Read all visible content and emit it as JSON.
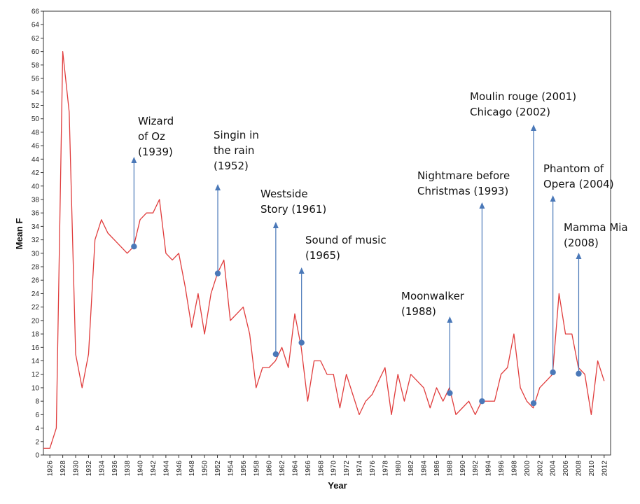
{
  "chart_data": {
    "type": "line",
    "title": "",
    "xlabel": "Year",
    "ylabel": "Mean F",
    "xlim": [
      1925,
      2013
    ],
    "ylim": [
      0,
      66
    ],
    "y_ticks": [
      0,
      2,
      4,
      6,
      8,
      10,
      12,
      14,
      16,
      18,
      20,
      22,
      24,
      26,
      28,
      30,
      32,
      34,
      36,
      38,
      40,
      42,
      44,
      46,
      48,
      50,
      52,
      54,
      56,
      58,
      60,
      62,
      64,
      66
    ],
    "x_ticks": [
      1926,
      1928,
      1930,
      1932,
      1934,
      1936,
      1938,
      1940,
      1942,
      1944,
      1946,
      1948,
      1950,
      1952,
      1954,
      1956,
      1958,
      1960,
      1962,
      1964,
      1966,
      1968,
      1970,
      1972,
      1974,
      1976,
      1978,
      1980,
      1982,
      1984,
      1986,
      1988,
      1990,
      1992,
      1994,
      1996,
      1998,
      2000,
      2002,
      2004,
      2006,
      2008,
      2010,
      2012
    ],
    "grid": false,
    "line_color": "#e03c3c",
    "marker_color": "#4a78b8",
    "series": [
      {
        "x": [
          1925,
          1926,
          1927,
          1928,
          1929,
          1930,
          1931,
          1932,
          1933,
          1934,
          1935,
          1936,
          1937,
          1938,
          1939,
          1940,
          1941,
          1942,
          1943,
          1944,
          1945,
          1946,
          1947,
          1948,
          1949,
          1950,
          1951,
          1952,
          1953,
          1954,
          1955,
          1956,
          1957,
          1958,
          1959,
          1960,
          1961,
          1962,
          1963,
          1964,
          1965,
          1966,
          1967,
          1968,
          1969,
          1970,
          1971,
          1972,
          1973,
          1974,
          1975,
          1976,
          1977,
          1978,
          1979,
          1980,
          1981,
          1982,
          1983,
          1984,
          1985,
          1986,
          1987,
          1988,
          1989,
          1990,
          1991,
          1992,
          1993,
          1994,
          1995,
          1996,
          1997,
          1998,
          1999,
          2000,
          2001,
          2002,
          2003,
          2004,
          2005,
          2006,
          2007,
          2008,
          2009,
          2010,
          2011,
          2012
        ],
        "values": [
          1,
          1,
          4,
          60,
          51,
          15,
          10,
          15,
          32,
          35,
          33,
          32,
          31,
          30,
          31,
          35,
          36,
          36,
          38,
          30,
          29,
          30,
          25,
          19,
          24,
          18,
          24,
          27,
          29,
          20,
          21,
          22,
          18,
          10,
          13,
          13,
          14,
          16,
          13,
          21,
          16,
          8,
          14,
          14,
          12,
          12,
          7,
          12,
          9,
          6,
          8,
          9,
          11,
          13,
          6,
          12,
          8,
          12,
          11,
          10,
          7,
          10,
          8,
          10,
          6,
          7,
          8,
          6,
          8,
          8,
          8,
          12,
          13,
          18,
          10,
          8,
          7,
          10,
          11,
          12,
          24,
          18,
          18,
          13,
          12,
          6,
          14,
          11
        ]
      }
    ],
    "highlights": [
      {
        "x": 1939,
        "y": 31,
        "label_lines": [
          "Wizard",
          "of Oz",
          "(1939)"
        ]
      },
      {
        "x": 1952,
        "y": 27,
        "label_lines": [
          "Singin in",
          "the rain",
          "(1952)"
        ]
      },
      {
        "x": 1961,
        "y": 15,
        "label_lines": [
          "Westside",
          "Story (1961)"
        ]
      },
      {
        "x": 1965,
        "y": 16.7,
        "label_lines": [
          "Sound of music",
          "(1965)"
        ]
      },
      {
        "x": 1988,
        "y": 9.2,
        "label_lines": [
          "Moonwalker",
          "(1988)"
        ]
      },
      {
        "x": 1993,
        "y": 8,
        "label_lines": [
          "Nightmare before",
          "Christmas (1993)"
        ]
      },
      {
        "x": 2001,
        "y": 7.7,
        "label_lines": [
          "Moulin rouge (2001)",
          "Chicago (2002)"
        ]
      },
      {
        "x": 2004,
        "y": 12.3,
        "label_lines": [
          "Phantom of",
          "Opera (2004)"
        ]
      },
      {
        "x": 2008,
        "y": 12.1,
        "label_lines": [
          "Mamma Mia",
          "(2008)"
        ]
      }
    ]
  }
}
